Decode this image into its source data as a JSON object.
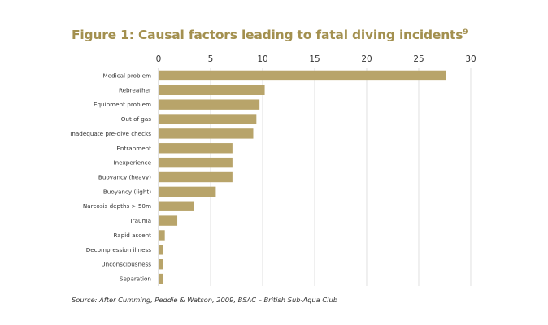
{
  "chart_data": {
    "type": "bar",
    "orientation": "horizontal",
    "title": "Figure 1: Causal factors leading to fatal diving incidents",
    "title_sup": "9",
    "categories": [
      "Medical problem",
      "Rebreather",
      "Equipment problem",
      "Out of gas",
      "Inadequate pre-dive checks",
      "Entrapment",
      "Inexperience",
      "Buoyancy (heavy)",
      "Buoyancy (light)",
      "Narcosis depths > 50m",
      "Trauma",
      "Rapid ascent",
      "Decompression illness",
      "Unconsciousness",
      "Separation"
    ],
    "values": [
      27.6,
      10.2,
      9.7,
      9.4,
      9.1,
      7.1,
      7.1,
      7.1,
      5.5,
      3.4,
      1.8,
      0.6,
      0.4,
      0.4,
      0.4
    ],
    "xticks": [
      0,
      5,
      10,
      15,
      20,
      25,
      30
    ],
    "xlim": [
      0,
      30
    ],
    "xlabel": "",
    "ylabel": "",
    "grid": "vertical",
    "bar_color": "#b8a46a",
    "source": "Source: After Cumming, Peddie & Watson, 2009, BSAC – British Sub-Aqua Club"
  },
  "colors": {
    "title": "#a3904f",
    "bar": "#b8a46a",
    "grid": "#d8d8d8",
    "text": "#333333"
  }
}
